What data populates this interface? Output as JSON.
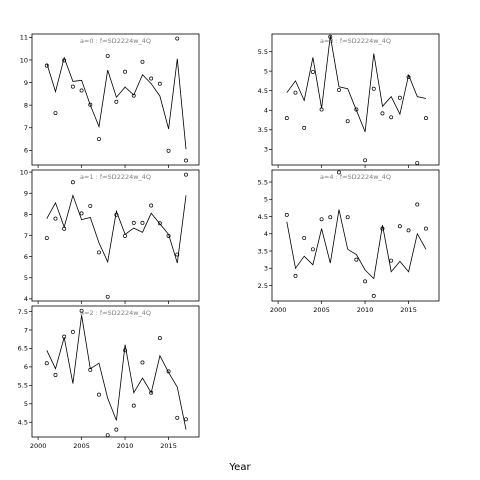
{
  "chart_data": {
    "xlabel": "Year",
    "panels": [
      {
        "type": "line+scatter",
        "title": "a=0  :  f=SD2224w_4Q",
        "x": [
          2001,
          2002,
          2003,
          2004,
          2005,
          2006,
          2007,
          2008,
          2009,
          2010,
          2011,
          2012,
          2013,
          2014,
          2015,
          2016,
          2017
        ],
        "line": [
          9.85,
          8.6,
          10.1,
          9.05,
          9.1,
          8.0,
          7.05,
          9.55,
          8.35,
          8.8,
          8.45,
          9.35,
          8.95,
          8.4,
          6.95,
          10.05,
          6.05
        ],
        "points": [
          9.75,
          7.65,
          9.98,
          8.82,
          8.65,
          8.02,
          6.5,
          10.18,
          8.15,
          9.48,
          8.42,
          9.92,
          9.18,
          8.95,
          5.98,
          10.95,
          5.55
        ],
        "yticks": [
          6,
          7,
          8,
          9,
          10,
          11
        ],
        "ylim": [
          5.35,
          11.15
        ],
        "xticks": [
          2000,
          2005,
          2010,
          2015
        ]
      },
      {
        "type": "line+scatter",
        "title": "a=1  :  f=SD2224w_4Q",
        "x": [
          2001,
          2002,
          2003,
          2004,
          2005,
          2006,
          2007,
          2008,
          2009,
          2010,
          2011,
          2012,
          2013,
          2014,
          2015,
          2016,
          2017
        ],
        "line": [
          7.8,
          8.55,
          7.4,
          8.9,
          7.75,
          7.85,
          6.65,
          5.75,
          8.15,
          7.05,
          7.35,
          7.15,
          8.05,
          7.55,
          7.05,
          5.7,
          8.9
        ],
        "points": [
          6.88,
          7.8,
          7.32,
          9.52,
          8.05,
          8.4,
          6.2,
          4.1,
          7.98,
          6.98,
          7.6,
          7.6,
          8.42,
          7.58,
          6.98,
          6.1,
          9.88
        ],
        "yticks": [
          4,
          5,
          6,
          7,
          8,
          9,
          10
        ],
        "ylim": [
          3.9,
          10.1
        ],
        "xticks": [
          2000,
          2005,
          2010,
          2015
        ]
      },
      {
        "type": "line+scatter",
        "title": "a=2  :  f=SD2224w_4Q",
        "x": [
          2001,
          2002,
          2003,
          2004,
          2005,
          2006,
          2007,
          2008,
          2009,
          2010,
          2011,
          2012,
          2013,
          2014,
          2015,
          2016,
          2017
        ],
        "line": [
          6.45,
          5.95,
          6.8,
          5.55,
          7.4,
          5.95,
          6.1,
          5.15,
          4.55,
          6.6,
          5.3,
          5.7,
          5.3,
          6.3,
          5.85,
          5.45,
          4.3
        ],
        "points": [
          6.1,
          5.78,
          6.82,
          6.95,
          7.52,
          5.92,
          5.25,
          4.15,
          4.3,
          6.45,
          4.95,
          6.12,
          5.3,
          6.78,
          5.88,
          4.62,
          4.58
        ],
        "yticks": [
          4.5,
          5.0,
          5.5,
          6.0,
          6.5,
          7.0,
          7.5
        ],
        "ylim": [
          4.1,
          7.65
        ],
        "xticks": [
          2000,
          2005,
          2010,
          2015
        ]
      },
      {
        "type": "line+scatter",
        "title": "a=3  :  f=SD2224w_4Q",
        "x": [
          2001,
          2002,
          2003,
          2004,
          2005,
          2006,
          2007,
          2008,
          2009,
          2010,
          2011,
          2012,
          2013,
          2014,
          2015,
          2016,
          2017
        ],
        "line": [
          4.45,
          4.75,
          4.25,
          5.35,
          4.05,
          5.9,
          4.6,
          4.55,
          4.0,
          3.45,
          5.45,
          4.1,
          4.35,
          3.9,
          4.9,
          4.35,
          4.3
        ],
        "points": [
          3.8,
          4.45,
          3.55,
          4.98,
          4.02,
          5.88,
          4.52,
          3.72,
          4.02,
          2.72,
          4.55,
          3.92,
          3.82,
          4.32,
          4.85,
          2.65,
          3.8
        ],
        "yticks": [
          3.0,
          3.5,
          4.0,
          4.5,
          5.0,
          5.5
        ],
        "ylim": [
          2.6,
          5.95
        ],
        "xticks": [
          2000,
          2005,
          2010,
          2015
        ]
      },
      {
        "type": "line+scatter",
        "title": "a=4  :  f=SD2224w_4Q",
        "x": [
          2001,
          2002,
          2003,
          2004,
          2005,
          2006,
          2007,
          2008,
          2009,
          2010,
          2011,
          2012,
          2013,
          2014,
          2015,
          2016,
          2017
        ],
        "line": [
          4.35,
          3.0,
          3.35,
          3.1,
          4.15,
          3.15,
          4.7,
          3.55,
          3.4,
          2.95,
          2.7,
          4.25,
          2.9,
          3.2,
          2.9,
          4.0,
          3.55
        ],
        "points": [
          4.55,
          2.78,
          3.88,
          3.55,
          4.42,
          4.48,
          5.78,
          4.48,
          3.25,
          2.62,
          2.2,
          4.15,
          3.22,
          4.22,
          4.1,
          4.85,
          4.15
        ],
        "yticks": [
          2.5,
          3.0,
          3.5,
          4.0,
          4.5,
          5.0,
          5.5
        ],
        "ylim": [
          2.05,
          5.85
        ],
        "xticks": [
          2000,
          2005,
          2010,
          2015
        ]
      }
    ]
  }
}
